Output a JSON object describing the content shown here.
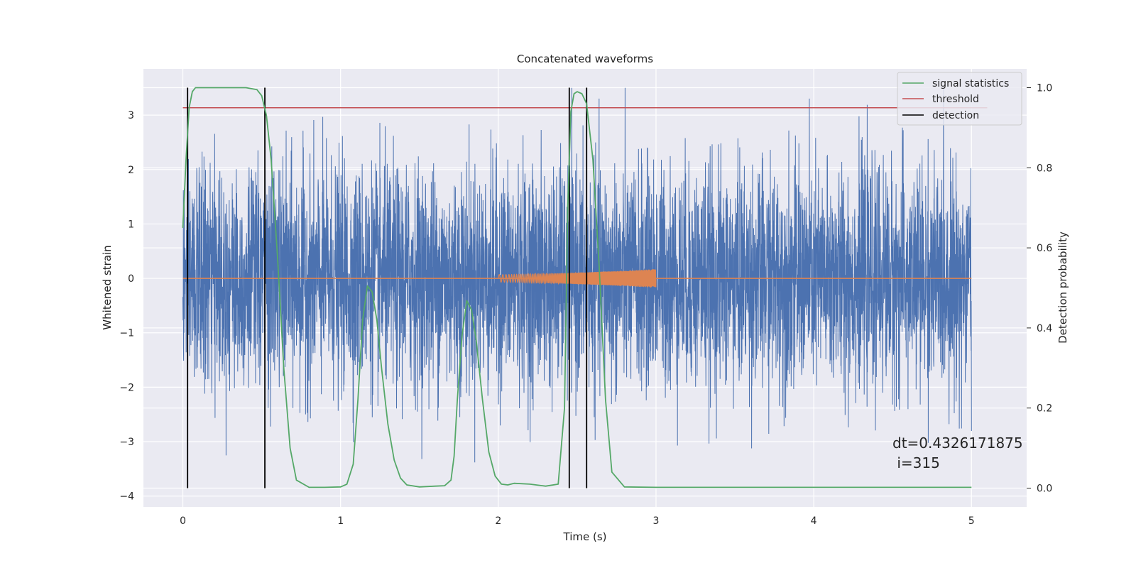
{
  "chart_data": {
    "type": "line",
    "title": "Concatenated waveforms",
    "xlabel": "Time (s)",
    "ylabel": "Whitened strain",
    "ylabel_right": "Detection probability",
    "xlim": [
      -0.25,
      5.35
    ],
    "ylim": [
      -4.2,
      3.85
    ],
    "ylim_right": [
      -0.047,
      1.047
    ],
    "x_ticks": [
      0,
      1,
      2,
      3,
      4,
      5
    ],
    "y_ticks": [
      -4,
      -3,
      -2,
      -1,
      0,
      1,
      2,
      3
    ],
    "y_ticks_right": [
      0.0,
      0.2,
      0.4,
      0.6,
      0.8,
      1.0
    ],
    "x_tick_labels": [
      "0",
      "1",
      "2",
      "3",
      "4",
      "5"
    ],
    "y_tick_labels": [
      "−4",
      "−3",
      "−2",
      "−1",
      "0",
      "1",
      "2",
      "3"
    ],
    "y_tick_labels_right": [
      "0.0",
      "0.2",
      "0.4",
      "0.6",
      "0.8",
      "1.0"
    ],
    "grid": true,
    "legend_position": "top-right",
    "series": [
      {
        "name": "",
        "kind": "noise",
        "axis": "left",
        "color": "#4c72b0",
        "x_range": [
          0,
          5
        ],
        "typical_amplitude": 1.0,
        "max_positive": 3.5,
        "min_negative": -3.95
      },
      {
        "name": "",
        "kind": "injected_waveform",
        "axis": "left",
        "color": "#dd8452",
        "baseline_x_range": [
          0,
          5
        ],
        "chirp_x_range": [
          2.0,
          3.0
        ],
        "chirp_amplitude_start": 0.07,
        "chirp_amplitude_end": 0.17
      },
      {
        "name": "signal statistics",
        "kind": "line",
        "axis": "right",
        "color": "#55a868",
        "x": [
          0.0,
          0.02,
          0.04,
          0.06,
          0.08,
          0.12,
          0.2,
          0.3,
          0.4,
          0.47,
          0.5,
          0.53,
          0.56,
          0.6,
          0.64,
          0.68,
          0.72,
          0.8,
          0.9,
          1.0,
          1.04,
          1.08,
          1.11,
          1.14,
          1.17,
          1.2,
          1.23,
          1.26,
          1.3,
          1.34,
          1.38,
          1.42,
          1.5,
          1.6,
          1.66,
          1.7,
          1.72,
          1.74,
          1.77,
          1.8,
          1.83,
          1.86,
          1.9,
          1.94,
          1.98,
          2.02,
          2.06,
          2.1,
          2.2,
          2.3,
          2.38,
          2.42,
          2.44,
          2.46,
          2.48,
          2.5,
          2.53,
          2.56,
          2.6,
          2.64,
          2.68,
          2.72,
          2.8,
          3.0,
          3.5,
          4.0,
          4.5,
          5.0
        ],
        "y": [
          0.65,
          0.82,
          0.95,
          0.99,
          1.0,
          1.0,
          1.0,
          1.0,
          1.0,
          0.995,
          0.98,
          0.93,
          0.82,
          0.58,
          0.3,
          0.1,
          0.02,
          0.002,
          0.002,
          0.003,
          0.01,
          0.06,
          0.22,
          0.42,
          0.505,
          0.49,
          0.42,
          0.3,
          0.16,
          0.07,
          0.025,
          0.008,
          0.003,
          0.005,
          0.006,
          0.02,
          0.08,
          0.22,
          0.38,
          0.468,
          0.445,
          0.37,
          0.22,
          0.09,
          0.03,
          0.01,
          0.008,
          0.012,
          0.01,
          0.005,
          0.01,
          0.2,
          0.7,
          0.94,
          0.985,
          0.99,
          0.985,
          0.96,
          0.82,
          0.55,
          0.22,
          0.04,
          0.003,
          0.002,
          0.002,
          0.002,
          0.002,
          0.002
        ]
      },
      {
        "name": "threshold",
        "kind": "hline",
        "axis": "right",
        "color": "#c44e52",
        "value": 0.95
      },
      {
        "name": "detection",
        "kind": "vlines",
        "axis": "right",
        "color": "#000000",
        "x": [
          0.03,
          0.52,
          2.45,
          2.56
        ],
        "ymin": 0.0,
        "ymax": 1.0
      }
    ],
    "annotation": {
      "line1": "dt=0.4326171875",
      "line2": " i=315"
    }
  },
  "colors": {
    "plot_background": "#eaeaf2",
    "grid": "#ffffff",
    "text": "#262626"
  }
}
